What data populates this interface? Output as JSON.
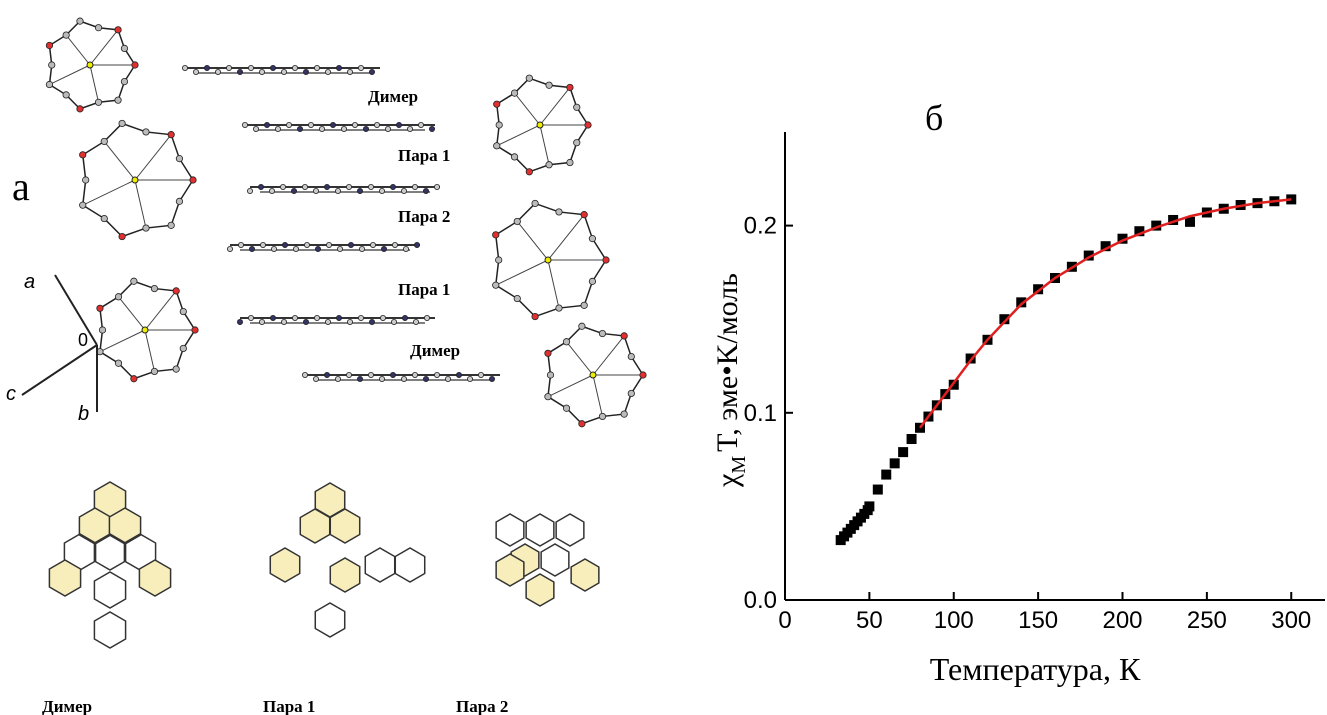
{
  "structure": {
    "panel_label": "а",
    "stack_labels": [
      "Димер",
      "Пара 1",
      "Пара 2",
      "Пара 1",
      "Димер"
    ],
    "axes_labels": {
      "a": "a",
      "c": "c",
      "b": "b",
      "origin": "0"
    },
    "bottom_labels": [
      "Димер",
      "Пара 1",
      "Пара 2"
    ]
  },
  "chart_data": {
    "type": "scatter",
    "panel_label": "б",
    "x_label": "Температура, К",
    "y_label": {
      "symbol": "χ",
      "subscript": "M",
      "rest": "T, эме•K/моль"
    },
    "xlim": [
      0,
      320
    ],
    "ylim": [
      0,
      0.25
    ],
    "xticks": [
      0,
      50,
      100,
      150,
      200,
      250,
      300
    ],
    "yticks": [
      {
        "value": 0,
        "label": "0.0"
      },
      {
        "value": 0.1,
        "label": "0.1"
      },
      {
        "value": 0.2,
        "label": "0.2"
      }
    ],
    "series": [
      {
        "type": "scatter",
        "color": "#000000",
        "x": [
          33,
          35,
          37,
          39,
          41,
          43,
          45,
          47,
          49,
          50,
          55,
          60,
          65,
          70,
          75,
          80,
          85,
          90,
          95,
          100,
          110,
          120,
          130,
          140,
          150,
          160,
          170,
          180,
          190,
          200,
          210,
          220,
          230,
          240,
          250,
          260,
          270,
          280,
          290,
          300
        ],
        "values": [
          0.032,
          0.034,
          0.036,
          0.038,
          0.04,
          0.042,
          0.044,
          0.046,
          0.048,
          0.05,
          0.059,
          0.067,
          0.073,
          0.079,
          0.086,
          0.092,
          0.098,
          0.104,
          0.11,
          0.115,
          0.129,
          0.139,
          0.15,
          0.159,
          0.166,
          0.172,
          0.178,
          0.184,
          0.189,
          0.193,
          0.197,
          0.2,
          0.203,
          0.202,
          0.207,
          0.209,
          0.211,
          0.212,
          0.213,
          0.214
        ]
      },
      {
        "type": "line",
        "color": "#e02020",
        "x": [
          80,
          90,
          100,
          110,
          120,
          140,
          160,
          180,
          200,
          220,
          240,
          260,
          280,
          300
        ],
        "values": [
          0.092,
          0.104,
          0.116,
          0.128,
          0.139,
          0.158,
          0.172,
          0.183,
          0.192,
          0.199,
          0.205,
          0.209,
          0.212,
          0.214
        ]
      }
    ]
  }
}
